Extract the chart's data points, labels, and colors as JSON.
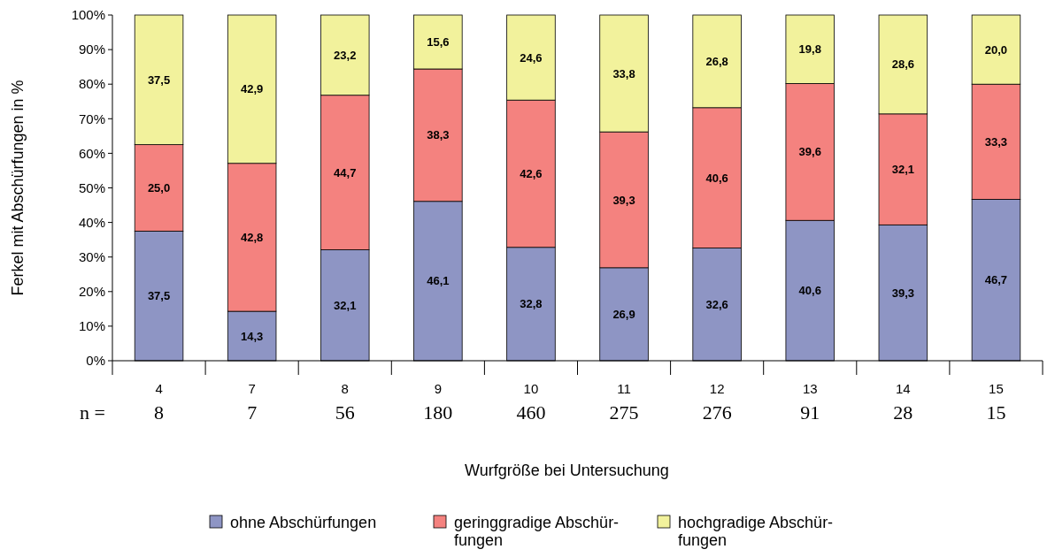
{
  "chart_data": {
    "type": "bar",
    "stacked": true,
    "xlabel": "Wurfgröße bei Untersuchung",
    "ylabel": "Ferkel mit Abschürfungen in %",
    "categories": [
      "4",
      "7",
      "8",
      "9",
      "10",
      "11",
      "12",
      "13",
      "14",
      "15"
    ],
    "series": [
      {
        "name": "ohne Abschürfungen",
        "color": "#8e95c4",
        "values": [
          37.5,
          14.3,
          32.1,
          46.1,
          32.8,
          26.9,
          32.6,
          40.6,
          39.3,
          46.7
        ],
        "value_labels": [
          "37,5",
          "14,3",
          "32,1",
          "46,1",
          "32,8",
          "26,9",
          "32,6",
          "40,6",
          "39,3",
          "46,7"
        ]
      },
      {
        "name": "geringgradige Abschür-\nfungen",
        "color": "#f4827f",
        "values": [
          25.0,
          42.8,
          44.7,
          38.3,
          42.6,
          39.3,
          40.6,
          39.6,
          32.1,
          33.3
        ],
        "value_labels": [
          "25,0",
          "42,8",
          "44,7",
          "38,3",
          "42,6",
          "39,3",
          "40,6",
          "39,6",
          "32,1",
          "33,3"
        ]
      },
      {
        "name": "hochgradige Abschür-\nfungen",
        "color": "#f2f29c",
        "values": [
          37.5,
          42.9,
          23.2,
          15.6,
          24.6,
          33.8,
          26.8,
          19.8,
          28.6,
          20.0
        ],
        "value_labels": [
          "37,5",
          "42,9",
          "23,2",
          "15,6",
          "24,6",
          "33,8",
          "26,8",
          "19,8",
          "28,6",
          "20,0"
        ]
      }
    ],
    "ylim": [
      0,
      100
    ],
    "yticks": [
      {
        "value": 0,
        "label": "0%"
      },
      {
        "value": 10,
        "label": "10%"
      },
      {
        "value": 20,
        "label": "20%"
      },
      {
        "value": 30,
        "label": "30%"
      },
      {
        "value": 40,
        "label": "40%"
      },
      {
        "value": 50,
        "label": "50%"
      },
      {
        "value": 60,
        "label": "60%"
      },
      {
        "value": 70,
        "label": "70%"
      },
      {
        "value": 80,
        "label": "80%"
      },
      {
        "value": 90,
        "label": "90%"
      },
      {
        "value": 100,
        "label": "100%"
      }
    ],
    "legend": "bottom",
    "annotations": [
      "n =",
      "8",
      "7",
      "56",
      "180",
      "460",
      "275",
      "276",
      "91",
      "28",
      "15"
    ]
  }
}
